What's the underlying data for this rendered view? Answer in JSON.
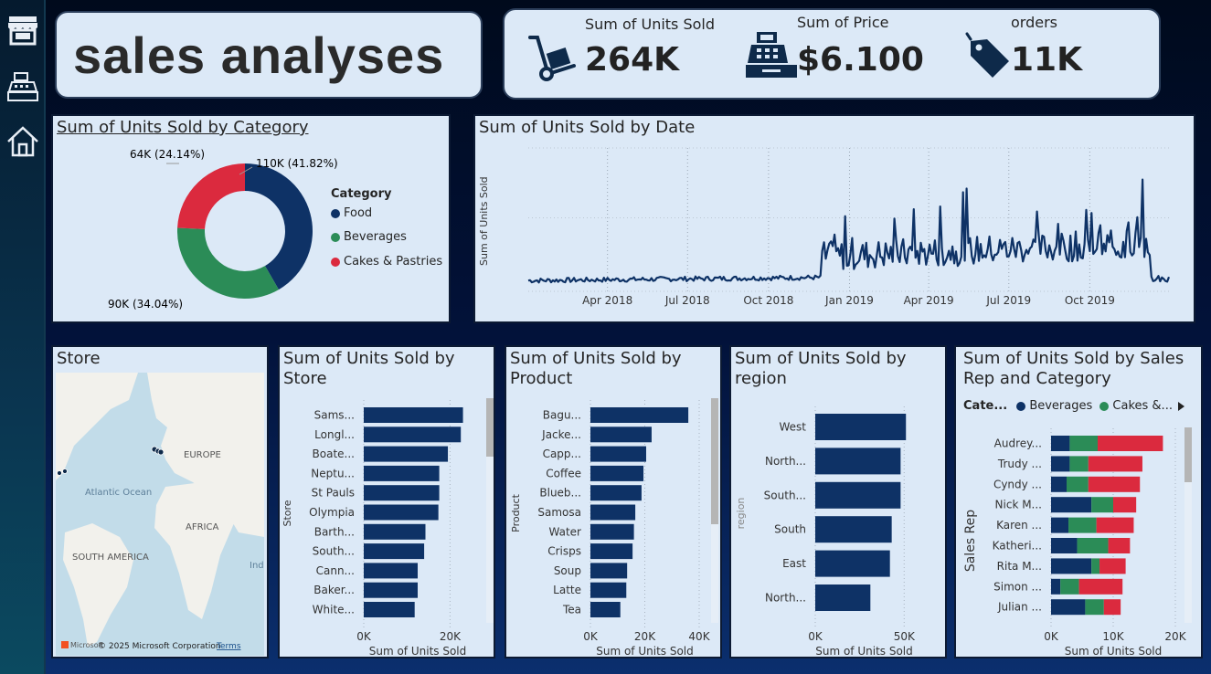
{
  "header": {
    "title": "sales analyses"
  },
  "kpis": [
    {
      "label": "Sum of Units Sold",
      "value": "264K",
      "icon": "hand-truck-icon"
    },
    {
      "label": "Sum of Price",
      "value": "$6.100",
      "icon": "cash-register-icon"
    },
    {
      "label": "orders",
      "value": "11K",
      "icon": "price-tag-icon"
    }
  ],
  "sidebar": {
    "items": [
      "store-icon",
      "cash-register-icon",
      "home-icon"
    ]
  },
  "category_donut": {
    "title": "Sum of Units Sold by Category",
    "legend_title": "Category",
    "chart_data": {
      "type": "pie",
      "categories": [
        "Food",
        "Beverages",
        "Cakes & Pastries"
      ],
      "values": [
        110,
        90,
        64
      ],
      "labels": [
        "110K (41.82%)",
        "90K (34.04%)",
        "64K (24.14%)"
      ],
      "colors": [
        "#0e3266",
        "#2b8c57",
        "#db2a3e"
      ]
    }
  },
  "date_line": {
    "title": "Sum of Units Sold by Date",
    "ylabel": "Sum of Units Sold",
    "ticks": [
      "Apr 2018",
      "Jul 2018",
      "Oct 2018",
      "Jan 2019",
      "Apr 2019",
      "Jul 2019",
      "Oct 2019"
    ],
    "color": "#0e3266"
  },
  "map": {
    "title": "Store",
    "labels": [
      "EUROPE",
      "Atlantic Ocean",
      "AFRICA",
      "SOUTH AMERICA",
      "Ind"
    ],
    "copyright": "© 2025 Microsoft Corporation",
    "brand": "Microsoft",
    "terms": "Terms"
  },
  "store_bars": {
    "title": "Sum of Units Sold by Store",
    "ylabel": "Store",
    "xlabel": "Sum of Units Sold",
    "chart_data": {
      "type": "bar",
      "categories": [
        "Sams...",
        "Longl...",
        "Boate...",
        "Neptu...",
        "St Pauls",
        "Olympia",
        "Barth...",
        "South...",
        "Cann...",
        "Baker...",
        "White..."
      ],
      "values": [
        23,
        22.5,
        19.5,
        17.5,
        17.5,
        17.3,
        14.3,
        14,
        12.5,
        12.5,
        11.8
      ],
      "ticks": [
        "0K",
        "20K"
      ],
      "tick_values": [
        0,
        20
      ],
      "xlim": [
        0,
        25
      ]
    }
  },
  "product_bars": {
    "title": "Sum of Units Sold by Product",
    "ylabel": "Product",
    "xlabel": "Sum of Units Sold",
    "chart_data": {
      "type": "bar",
      "categories": [
        "Bagu...",
        "Jacke...",
        "Capp...",
        "Coffee",
        "Blueb...",
        "Samosa",
        "Water",
        "Crisps",
        "Soup",
        "Latte",
        "Tea"
      ],
      "values": [
        36,
        22.5,
        20.5,
        19.5,
        18.8,
        16.5,
        16,
        15.5,
        13.5,
        13.2,
        11
      ],
      "ticks": [
        "0K",
        "20K",
        "40K"
      ],
      "tick_values": [
        0,
        20,
        40
      ],
      "xlim": [
        0,
        40
      ]
    }
  },
  "region_bars": {
    "title": "Sum of Units Sold by region",
    "ylabel": "region",
    "xlabel": "Sum of Units Sold",
    "chart_data": {
      "type": "bar",
      "categories": [
        "West",
        "North...",
        "South...",
        "South",
        "East",
        "North..."
      ],
      "values": [
        51,
        48,
        48,
        43,
        42,
        31
      ],
      "ticks": [
        "0K",
        "50K"
      ],
      "tick_values": [
        0,
        50
      ],
      "xlim": [
        0,
        55
      ]
    }
  },
  "rep_bars": {
    "title": "Sum of Units Sold by Sales Rep and Category",
    "legend_title": "Cate...",
    "legend": [
      "Beverages",
      "Cakes &..."
    ],
    "ylabel": "Sales Rep",
    "xlabel": "Sum of Units Sold",
    "chart_data": {
      "type": "bar",
      "categories": [
        "Audrey...",
        "Trudy ...",
        "Cyndy ...",
        "Nick M...",
        "Karen ...",
        "Katheri...",
        "Rita M...",
        "Simon ...",
        "Julian ..."
      ],
      "series": [
        {
          "name": "Beverages",
          "color": "#0e3266",
          "values": [
            3,
            3,
            2.5,
            6.5,
            2.8,
            4.2,
            6.5,
            1.5,
            5.5
          ]
        },
        {
          "name": "",
          "color": "#2b8c57",
          "values": [
            4.5,
            3,
            3.5,
            3.5,
            4.5,
            5,
            1.3,
            3,
            3
          ]
        },
        {
          "name": "",
          "color": "#db2a3e",
          "values": [
            10.5,
            8.7,
            8.3,
            3.7,
            6,
            3.5,
            4.2,
            7,
            2.7
          ]
        }
      ],
      "ticks": [
        "0K",
        "10K",
        "20K"
      ],
      "tick_values": [
        0,
        10,
        20
      ],
      "xlim": [
        0,
        20
      ]
    }
  }
}
